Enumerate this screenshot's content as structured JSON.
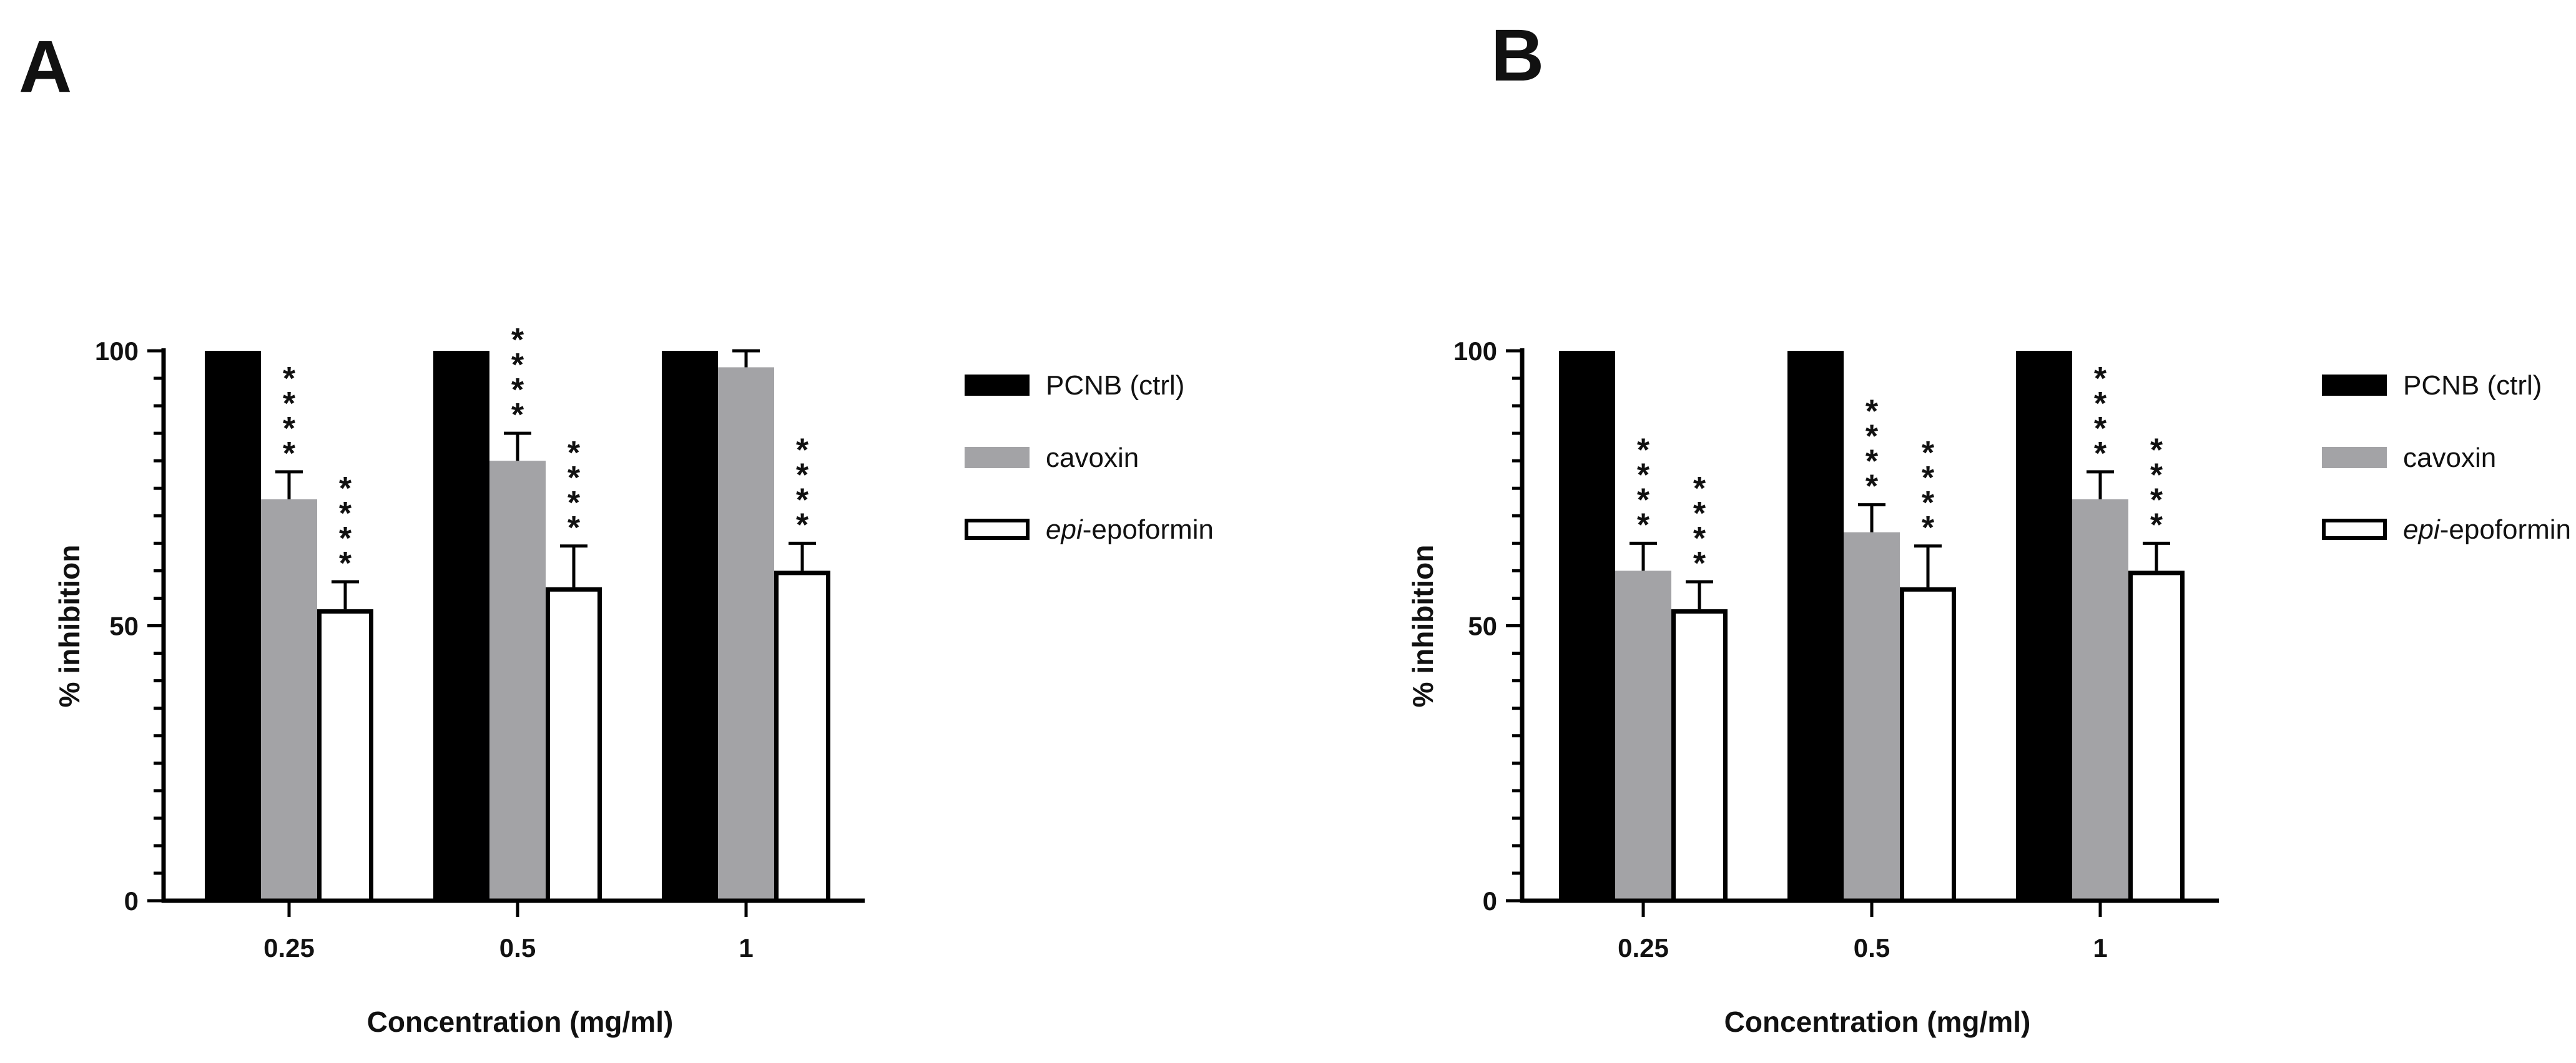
{
  "colors": {
    "pcnb": "#000000",
    "cavoxin": "#a3a3a6",
    "epi": "#ffffff",
    "axis": "#000000"
  },
  "legend": {
    "items": [
      {
        "key": "pcnb",
        "label": "PCNB (ctrl)",
        "italic_prefix": ""
      },
      {
        "key": "cavoxin",
        "label": "cavoxin",
        "italic_prefix": ""
      },
      {
        "key": "epi",
        "label": "-epoformin",
        "italic_prefix": "epi"
      }
    ]
  },
  "chart_data": [
    {
      "panel": "A",
      "type": "bar",
      "xlabel": "Concentration (mg/ml)",
      "ylabel": "% inhibition",
      "ylim": [
        0,
        100
      ],
      "yticks": [
        0,
        50,
        100
      ],
      "categories": [
        "0.25",
        "0.5",
        "1"
      ],
      "legend_position": "right",
      "series": [
        {
          "key": "pcnb",
          "name": "PCNB (ctrl)",
          "values": [
            100,
            100,
            100
          ],
          "errors": [
            0,
            0,
            0
          ],
          "significance": [
            "",
            "",
            ""
          ]
        },
        {
          "key": "cavoxin",
          "name": "cavoxin",
          "values": [
            73,
            80,
            97
          ],
          "errors": [
            5,
            5,
            3
          ],
          "significance": [
            "****",
            "****",
            ""
          ]
        },
        {
          "key": "epi",
          "name": "epi-epoformin",
          "values": [
            53,
            57,
            60
          ],
          "errors": [
            5,
            7.5,
            5
          ],
          "significance": [
            "****",
            "****",
            "****"
          ]
        }
      ]
    },
    {
      "panel": "B",
      "type": "bar",
      "xlabel": "Concentration (mg/ml)",
      "ylabel": "% inhibition",
      "ylim": [
        0,
        100
      ],
      "yticks": [
        0,
        50,
        100
      ],
      "categories": [
        "0.25",
        "0.5",
        "1"
      ],
      "legend_position": "right",
      "series": [
        {
          "key": "pcnb",
          "name": "PCNB (ctrl)",
          "values": [
            100,
            100,
            100
          ],
          "errors": [
            0,
            0,
            0
          ],
          "significance": [
            "",
            "",
            ""
          ]
        },
        {
          "key": "cavoxin",
          "name": "cavoxin",
          "values": [
            60,
            67,
            73
          ],
          "errors": [
            5,
            5,
            5
          ],
          "significance": [
            "****",
            "****",
            "****"
          ]
        },
        {
          "key": "epi",
          "name": "epi-epoformin",
          "values": [
            53,
            57,
            60
          ],
          "errors": [
            5,
            7.5,
            5
          ],
          "significance": [
            "****",
            "****",
            "****"
          ]
        }
      ]
    }
  ]
}
